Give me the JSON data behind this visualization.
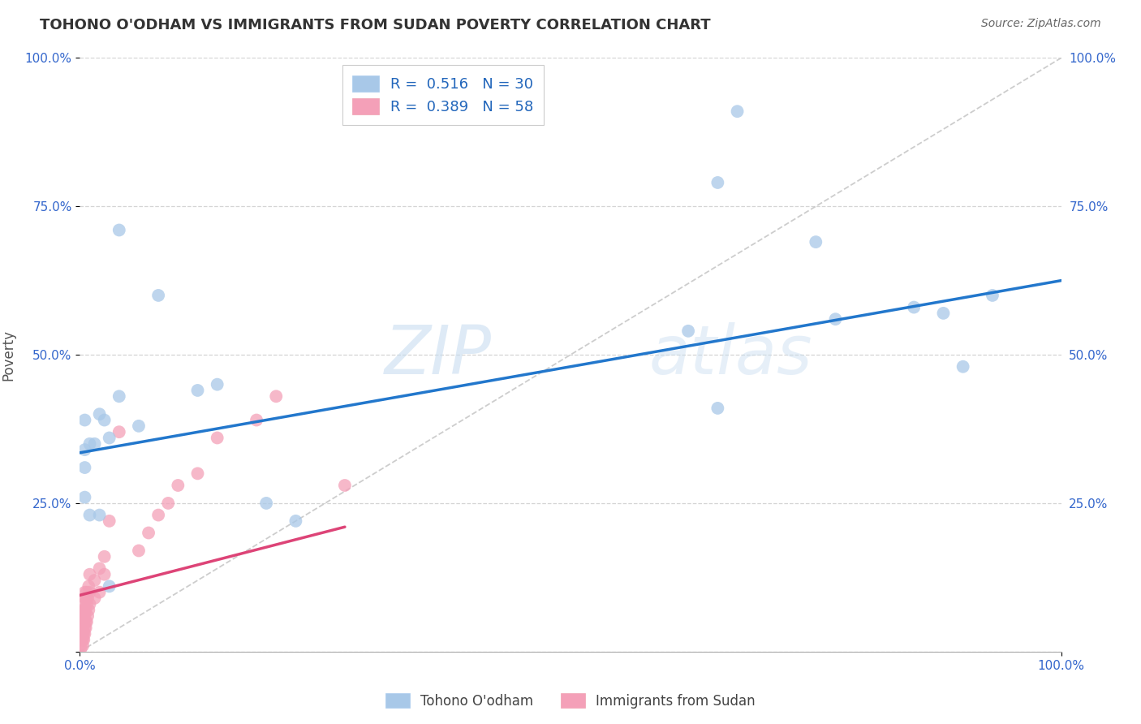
{
  "title": "TOHONO O'ODHAM VS IMMIGRANTS FROM SUDAN POVERTY CORRELATION CHART",
  "source": "Source: ZipAtlas.com",
  "ylabel": "Poverty",
  "xlim": [
    0.0,
    1.0
  ],
  "ylim": [
    0.0,
    1.0
  ],
  "background_color": "#ffffff",
  "grid_color": "#d0d0d0",
  "series1_label": "Tohono O'odham",
  "series1_color": "#a8c8e8",
  "series1_edge_color": "#6699cc",
  "series1_R": "0.516",
  "series1_N": "30",
  "series1_x": [
    0.08,
    0.67,
    0.04,
    0.03,
    0.015,
    0.005,
    0.005,
    0.02,
    0.025,
    0.01,
    0.04,
    0.12,
    0.14,
    0.005,
    0.01,
    0.02,
    0.06,
    0.005,
    0.93,
    0.77,
    0.62,
    0.65,
    0.88,
    0.85,
    0.9,
    0.03,
    0.19,
    0.22,
    0.65,
    0.75
  ],
  "series1_y": [
    0.6,
    0.91,
    0.71,
    0.36,
    0.35,
    0.34,
    0.31,
    0.4,
    0.39,
    0.35,
    0.43,
    0.44,
    0.45,
    0.26,
    0.23,
    0.23,
    0.38,
    0.39,
    0.6,
    0.56,
    0.54,
    0.79,
    0.57,
    0.58,
    0.48,
    0.11,
    0.25,
    0.22,
    0.41,
    0.69
  ],
  "series1_line_x": [
    0.0,
    1.0
  ],
  "series1_line_y": [
    0.335,
    0.625
  ],
  "series2_label": "Immigrants from Sudan",
  "series2_color": "#f4a0b8",
  "series2_edge_color": "#e06080",
  "series2_R": "0.389",
  "series2_N": "58",
  "series2_x": [
    0.001,
    0.001,
    0.001,
    0.002,
    0.002,
    0.002,
    0.002,
    0.002,
    0.003,
    0.003,
    0.003,
    0.003,
    0.003,
    0.003,
    0.003,
    0.004,
    0.004,
    0.004,
    0.004,
    0.004,
    0.005,
    0.005,
    0.005,
    0.005,
    0.005,
    0.005,
    0.006,
    0.006,
    0.006,
    0.006,
    0.007,
    0.007,
    0.007,
    0.008,
    0.008,
    0.009,
    0.009,
    0.01,
    0.01,
    0.01,
    0.015,
    0.015,
    0.02,
    0.02,
    0.025,
    0.025,
    0.03,
    0.04,
    0.06,
    0.07,
    0.08,
    0.09,
    0.1,
    0.12,
    0.14,
    0.18,
    0.2,
    0.27
  ],
  "series2_y": [
    0.005,
    0.01,
    0.02,
    0.02,
    0.03,
    0.04,
    0.05,
    0.06,
    0.01,
    0.02,
    0.03,
    0.04,
    0.05,
    0.06,
    0.07,
    0.02,
    0.03,
    0.05,
    0.06,
    0.08,
    0.03,
    0.04,
    0.06,
    0.07,
    0.09,
    0.1,
    0.04,
    0.05,
    0.07,
    0.09,
    0.05,
    0.08,
    0.1,
    0.06,
    0.09,
    0.07,
    0.11,
    0.08,
    0.1,
    0.13,
    0.09,
    0.12,
    0.1,
    0.14,
    0.13,
    0.16,
    0.22,
    0.37,
    0.17,
    0.2,
    0.23,
    0.25,
    0.28,
    0.3,
    0.36,
    0.39,
    0.43,
    0.28
  ],
  "series2_line_x": [
    0.0,
    0.27
  ],
  "series2_line_y": [
    0.095,
    0.21
  ],
  "diagonal_line_x": [
    0.0,
    1.0
  ],
  "diagonal_line_y": [
    0.0,
    1.0
  ],
  "xticks": [
    0.0,
    1.0
  ],
  "xtick_labels": [
    "0.0%",
    "100.0%"
  ],
  "yticks": [
    0.0,
    0.25,
    0.5,
    0.75,
    1.0
  ],
  "ytick_labels": [
    "",
    "25.0%",
    "50.0%",
    "75.0%",
    "100.0%"
  ],
  "tick_color": "#3366cc",
  "title_fontsize": 13,
  "tick_fontsize": 11,
  "legend_fontsize": 13,
  "source_fontsize": 10
}
